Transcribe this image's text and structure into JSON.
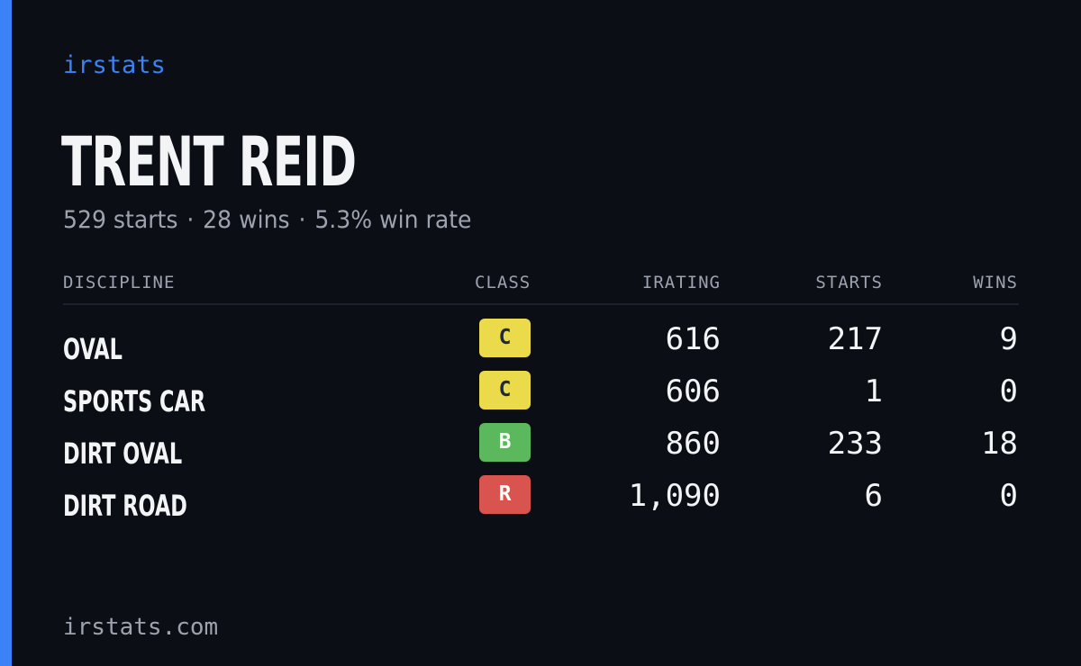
{
  "brand": "irstats",
  "driver": {
    "name": "TRENT REID",
    "summary": {
      "starts": "529 starts",
      "wins": "28 wins",
      "win_rate": "5.3% win rate",
      "separator": "·"
    }
  },
  "table": {
    "headers": {
      "discipline": "DISCIPLINE",
      "class": "CLASS",
      "irating": "IRATING",
      "starts": "STARTS",
      "wins": "WINS"
    },
    "rows": [
      {
        "discipline": "OVAL",
        "class": "C",
        "class_color": "#ebdb4a",
        "class_text_color": "#1f2937",
        "irating": "616",
        "starts": "217",
        "wins": "9"
      },
      {
        "discipline": "SPORTS CAR",
        "class": "C",
        "class_color": "#ebdb4a",
        "class_text_color": "#1f2937",
        "irating": "606",
        "starts": "1",
        "wins": "0"
      },
      {
        "discipline": "DIRT OVAL",
        "class": "B",
        "class_color": "#5cb85c",
        "class_text_color": "#ffffff",
        "irating": "860",
        "starts": "233",
        "wins": "18"
      },
      {
        "discipline": "DIRT ROAD",
        "class": "R",
        "class_color": "#d9534f",
        "class_text_color": "#ffffff",
        "irating": "1,090",
        "starts": "6",
        "wins": "0"
      }
    ]
  },
  "footer": {
    "domain": "irstats.com"
  },
  "colors": {
    "background": "#0b0e15",
    "accent": "#3b82f6",
    "muted_text": "#9ca3af",
    "primary_text": "#f3f4f6",
    "divider": "#1c2130"
  }
}
